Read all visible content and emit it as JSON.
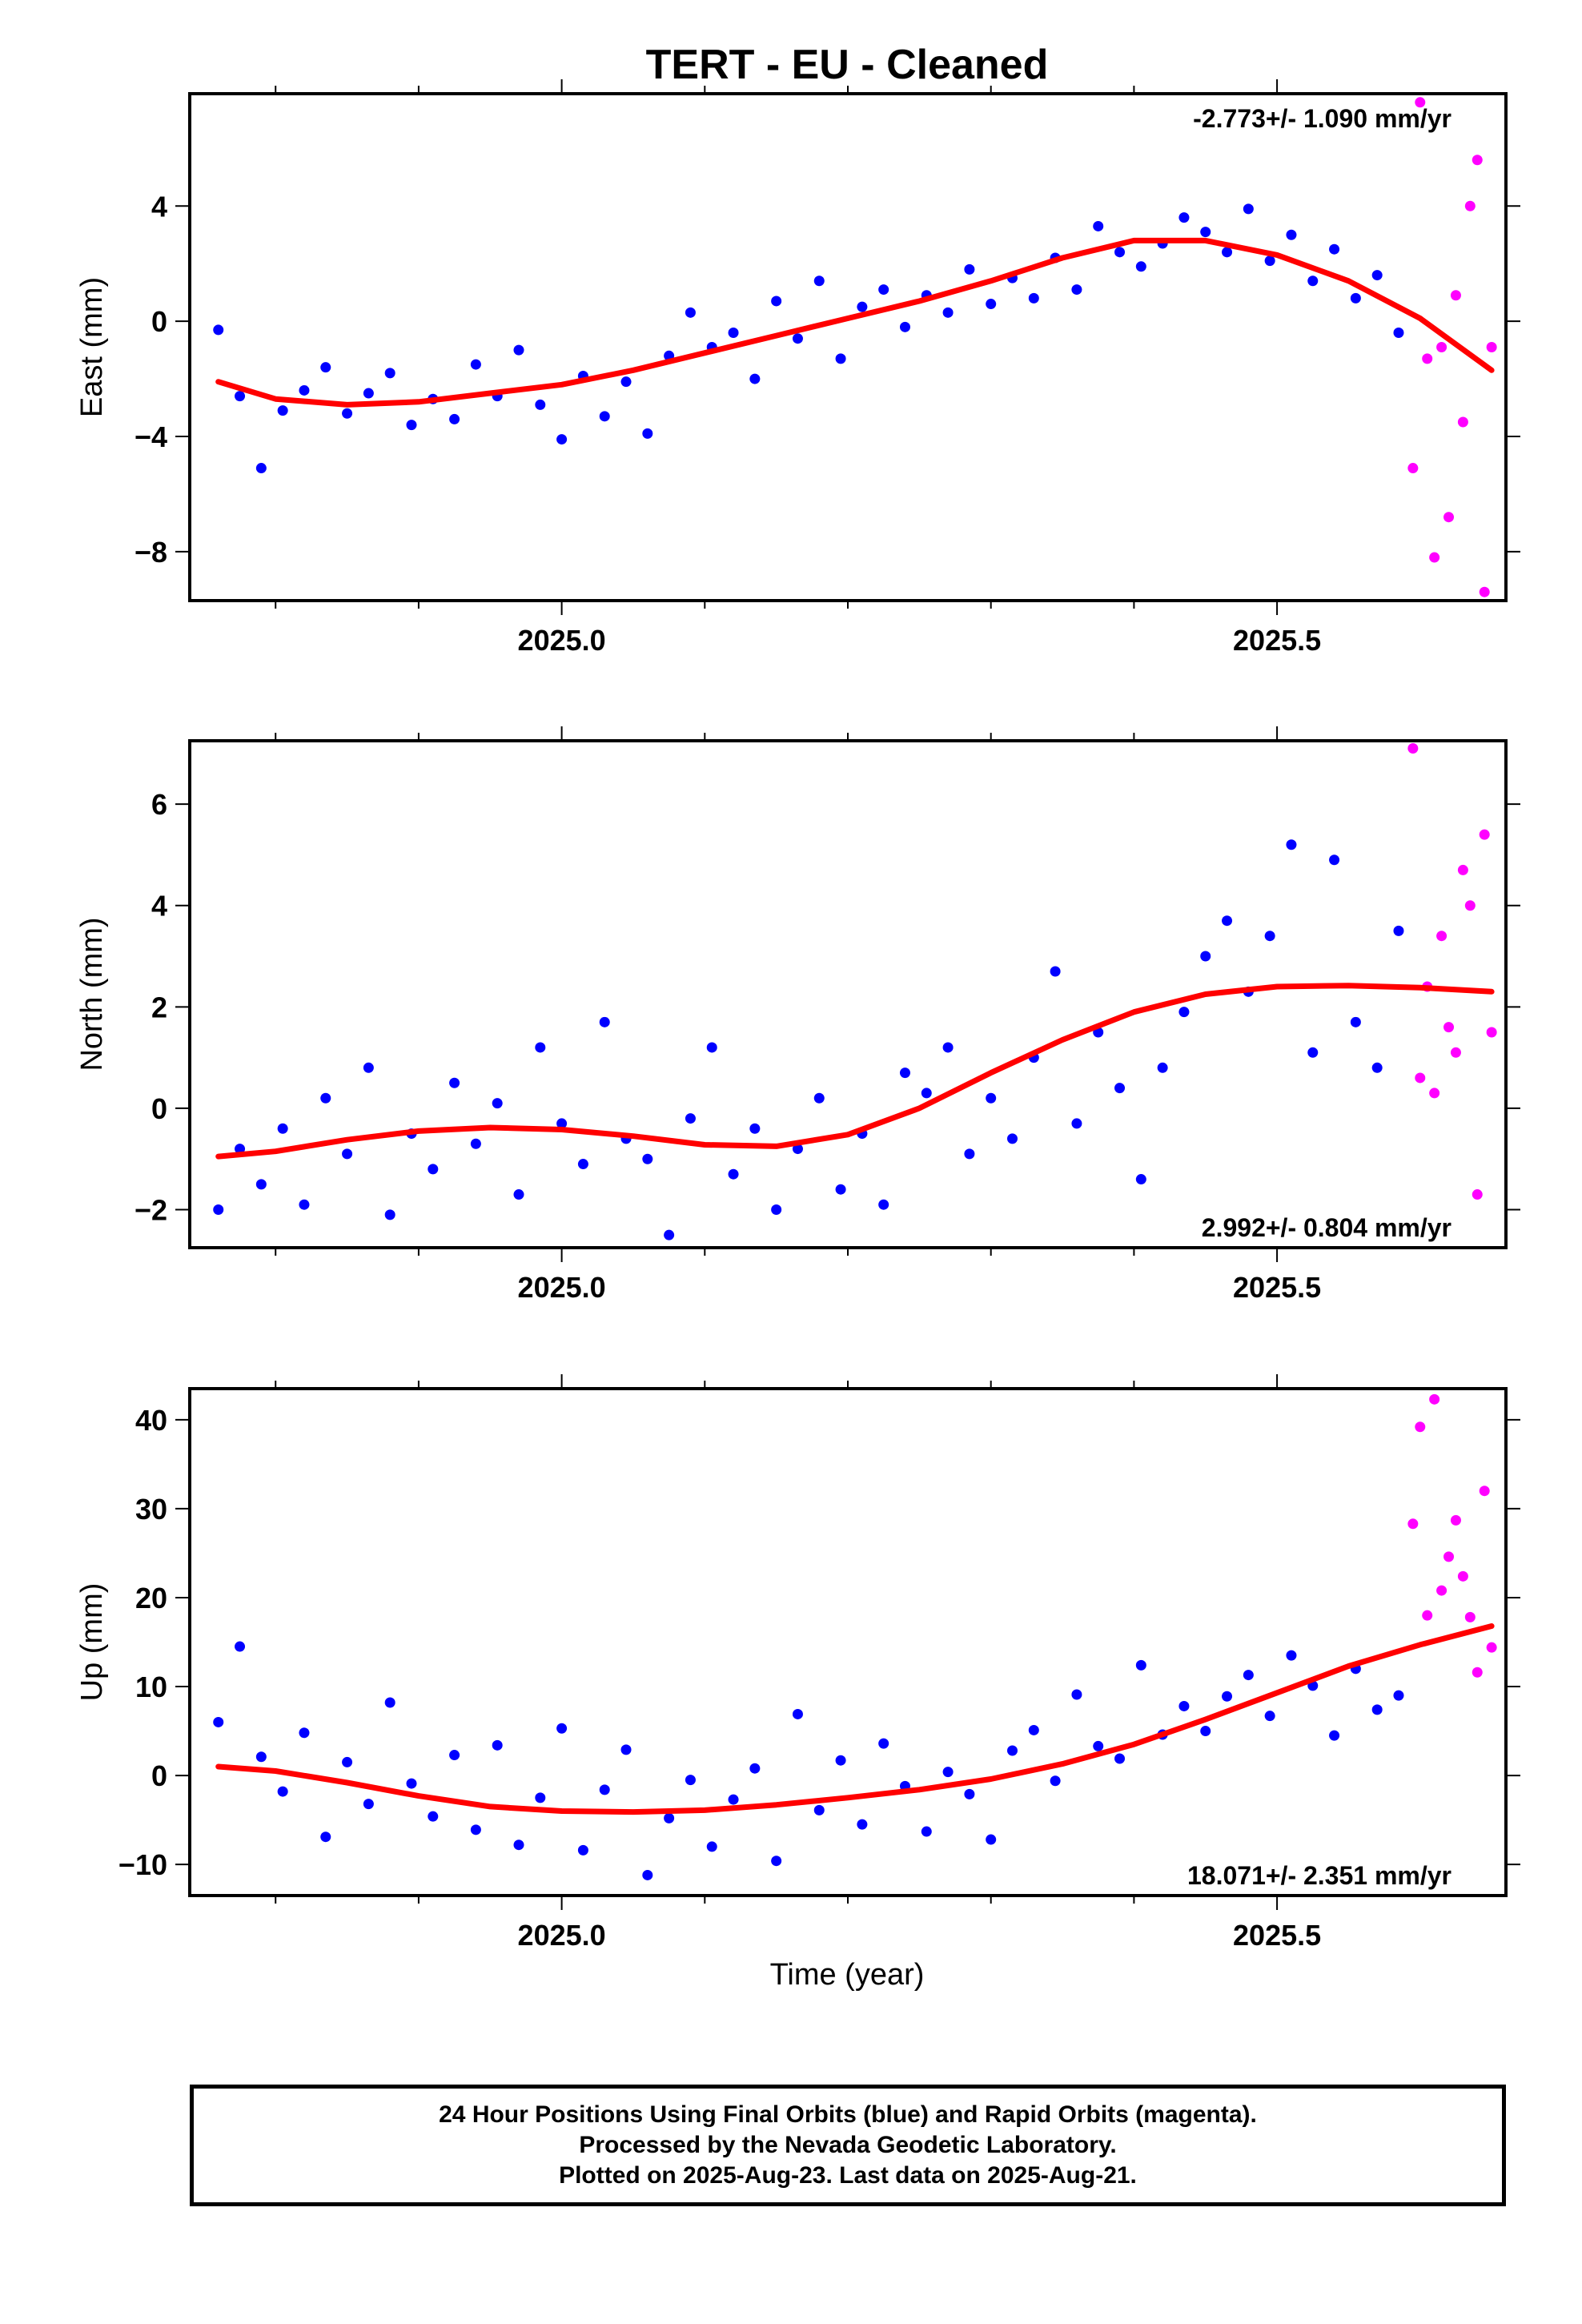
{
  "figure": {
    "title": "TERT  - EU - Cleaned",
    "xlabel": "Time (year)",
    "footer_lines": [
      "24 Hour Positions Using Final Orbits (blue) and Rapid Orbits (magenta).",
      "Processed by the Nevada Geodetic Laboratory.",
      "Plotted on 2025-Aug-23. Last data on 2025-Aug-21."
    ]
  },
  "colors": {
    "final": "#0000ff",
    "rapid": "#ff00ff",
    "fit": "#ff0000",
    "axes": "#000000"
  },
  "chart_data": [
    {
      "type": "scatter",
      "ylabel": "East (mm)",
      "rate_label": "-2.773+/- 1.090 mm/yr",
      "rate_position": "top-right",
      "xlim": [
        2024.74,
        2025.66
      ],
      "ylim": [
        -9.7,
        7.9
      ],
      "yticks": [
        -8,
        -4,
        0,
        4
      ],
      "ytick_labels": [
        "−8",
        "−4",
        "0",
        "4"
      ],
      "xticks": [
        2025.0,
        2025.5
      ],
      "xtick_labels": [
        "2025.0",
        "2025.5"
      ],
      "final": {
        "x": [
          2024.76,
          2024.775,
          2024.79,
          2024.805,
          2024.82,
          2024.835,
          2024.85,
          2024.865,
          2024.88,
          2024.895,
          2024.91,
          2024.925,
          2024.94,
          2024.955,
          2024.97,
          2024.985,
          2025.0,
          2025.015,
          2025.03,
          2025.045,
          2025.06,
          2025.075,
          2025.09,
          2025.105,
          2025.12,
          2025.135,
          2025.15,
          2025.165,
          2025.18,
          2025.195,
          2025.21,
          2025.225,
          2025.24,
          2025.255,
          2025.27,
          2025.285,
          2025.3,
          2025.315,
          2025.33,
          2025.345,
          2025.36,
          2025.375,
          2025.39,
          2025.405,
          2025.42,
          2025.435,
          2025.45,
          2025.465,
          2025.48,
          2025.495,
          2025.51,
          2025.525,
          2025.54,
          2025.555,
          2025.57,
          2025.585
        ],
        "y": [
          -0.3,
          -2.6,
          -5.1,
          -3.1,
          -2.4,
          -1.6,
          -3.2,
          -2.5,
          -1.8,
          -3.6,
          -2.7,
          -3.4,
          -1.5,
          -2.6,
          -1.0,
          -2.9,
          -4.1,
          -1.9,
          -3.3,
          -2.1,
          -3.9,
          -1.2,
          0.3,
          -0.9,
          -0.4,
          -2.0,
          0.7,
          -0.6,
          1.4,
          -1.3,
          0.5,
          1.1,
          -0.2,
          0.9,
          0.3,
          1.8,
          0.6,
          1.5,
          0.8,
          2.2,
          1.1,
          3.3,
          2.4,
          1.9,
          2.7,
          3.6,
          3.1,
          2.4,
          3.9,
          2.1,
          3.0,
          1.4,
          2.5,
          0.8,
          1.6,
          -0.4
        ]
      },
      "rapid": {
        "x": [
          2025.595,
          2025.6,
          2025.605,
          2025.61,
          2025.615,
          2025.62,
          2025.625,
          2025.63,
          2025.635,
          2025.64,
          2025.645,
          2025.65
        ],
        "y": [
          -5.1,
          7.6,
          -1.3,
          -8.2,
          -0.9,
          -6.8,
          0.9,
          -3.5,
          4.0,
          5.6,
          -9.4,
          -0.9
        ]
      },
      "fit": {
        "x": [
          2024.76,
          2024.8,
          2024.85,
          2024.9,
          2024.95,
          2025.0,
          2025.05,
          2025.1,
          2025.15,
          2025.2,
          2025.25,
          2025.3,
          2025.35,
          2025.4,
          2025.45,
          2025.5,
          2025.55,
          2025.6,
          2025.65
        ],
        "y": [
          -2.1,
          -2.7,
          -2.9,
          -2.8,
          -2.5,
          -2.2,
          -1.7,
          -1.1,
          -0.5,
          0.1,
          0.7,
          1.4,
          2.2,
          2.8,
          2.8,
          2.3,
          1.4,
          0.1,
          -1.7
        ]
      }
    },
    {
      "type": "scatter",
      "ylabel": "North (mm)",
      "rate_label": "2.992+/- 0.804 mm/yr",
      "rate_position": "bottom-right",
      "xlim": [
        2024.74,
        2025.66
      ],
      "ylim": [
        -2.75,
        7.25
      ],
      "yticks": [
        -2,
        0,
        2,
        4,
        6
      ],
      "ytick_labels": [
        "−2",
        "0",
        "2",
        "4",
        "6"
      ],
      "xticks": [
        2025.0,
        2025.5
      ],
      "xtick_labels": [
        "2025.0",
        "2025.5"
      ],
      "final": {
        "x": [
          2024.76,
          2024.775,
          2024.79,
          2024.805,
          2024.82,
          2024.835,
          2024.85,
          2024.865,
          2024.88,
          2024.895,
          2024.91,
          2024.925,
          2024.94,
          2024.955,
          2024.97,
          2024.985,
          2025.0,
          2025.015,
          2025.03,
          2025.045,
          2025.06,
          2025.075,
          2025.09,
          2025.105,
          2025.12,
          2025.135,
          2025.15,
          2025.165,
          2025.18,
          2025.195,
          2025.21,
          2025.225,
          2025.24,
          2025.255,
          2025.27,
          2025.285,
          2025.3,
          2025.315,
          2025.33,
          2025.345,
          2025.36,
          2025.375,
          2025.39,
          2025.405,
          2025.42,
          2025.435,
          2025.45,
          2025.465,
          2025.48,
          2025.495,
          2025.51,
          2025.525,
          2025.54,
          2025.555,
          2025.57,
          2025.585
        ],
        "y": [
          -2.0,
          -0.8,
          -1.5,
          -0.4,
          -1.9,
          0.2,
          -0.9,
          0.8,
          -2.1,
          -0.5,
          -1.2,
          0.5,
          -0.7,
          0.1,
          -1.7,
          1.2,
          -0.3,
          -1.1,
          1.7,
          -0.6,
          -1.0,
          -2.5,
          -0.2,
          1.2,
          -1.3,
          -0.4,
          -2.0,
          -0.8,
          0.2,
          -1.6,
          -0.5,
          -1.9,
          0.7,
          0.3,
          1.2,
          -0.9,
          0.2,
          -0.6,
          1.0,
          2.7,
          -0.3,
          1.5,
          0.4,
          -1.4,
          0.8,
          1.9,
          3.0,
          3.7,
          2.3,
          3.4,
          5.2,
          1.1,
          4.9,
          1.7,
          0.8,
          3.5
        ]
      },
      "rapid": {
        "x": [
          2025.595,
          2025.6,
          2025.605,
          2025.61,
          2025.615,
          2025.62,
          2025.625,
          2025.63,
          2025.635,
          2025.64,
          2025.645,
          2025.65
        ],
        "y": [
          7.1,
          0.6,
          2.4,
          0.3,
          3.4,
          1.6,
          1.1,
          4.7,
          4.0,
          -1.7,
          5.4,
          1.5
        ]
      },
      "fit": {
        "x": [
          2024.76,
          2024.8,
          2024.85,
          2024.9,
          2024.95,
          2025.0,
          2025.05,
          2025.1,
          2025.15,
          2025.2,
          2025.25,
          2025.3,
          2025.35,
          2025.4,
          2025.45,
          2025.5,
          2025.55,
          2025.6,
          2025.65
        ],
        "y": [
          -0.95,
          -0.85,
          -0.62,
          -0.45,
          -0.38,
          -0.42,
          -0.55,
          -0.72,
          -0.75,
          -0.52,
          0.0,
          0.7,
          1.35,
          1.9,
          2.25,
          2.4,
          2.42,
          2.38,
          2.3
        ]
      }
    },
    {
      "type": "scatter",
      "ylabel": "Up (mm)",
      "rate_label": "18.071+/- 2.351 mm/yr",
      "rate_position": "bottom-right",
      "xlim": [
        2024.74,
        2025.66
      ],
      "ylim": [
        -13.5,
        43.5
      ],
      "yticks": [
        -10,
        0,
        10,
        20,
        30,
        40
      ],
      "ytick_labels": [
        "−10",
        "0",
        "10",
        "20",
        "30",
        "40"
      ],
      "xticks": [
        2025.0,
        2025.5
      ],
      "xtick_labels": [
        "2025.0",
        "2025.5"
      ],
      "final": {
        "x": [
          2024.76,
          2024.775,
          2024.79,
          2024.805,
          2024.82,
          2024.835,
          2024.85,
          2024.865,
          2024.88,
          2024.895,
          2024.91,
          2024.925,
          2024.94,
          2024.955,
          2024.97,
          2024.985,
          2025.0,
          2025.015,
          2025.03,
          2025.045,
          2025.06,
          2025.075,
          2025.09,
          2025.105,
          2025.12,
          2025.135,
          2025.15,
          2025.165,
          2025.18,
          2025.195,
          2025.21,
          2025.225,
          2025.24,
          2025.255,
          2025.27,
          2025.285,
          2025.3,
          2025.315,
          2025.33,
          2025.345,
          2025.36,
          2025.375,
          2025.39,
          2025.405,
          2025.42,
          2025.435,
          2025.45,
          2025.465,
          2025.48,
          2025.495,
          2025.51,
          2025.525,
          2025.54,
          2025.555,
          2025.57,
          2025.585
        ],
        "y": [
          6.0,
          14.5,
          2.1,
          -1.8,
          4.8,
          -6.9,
          1.5,
          -3.2,
          8.2,
          -0.9,
          -4.6,
          2.3,
          -6.1,
          3.4,
          -7.8,
          -2.5,
          5.3,
          -8.4,
          -1.6,
          2.9,
          -11.2,
          -4.8,
          -0.5,
          -8.0,
          -2.7,
          0.8,
          -9.6,
          6.9,
          -3.9,
          1.7,
          -5.5,
          3.6,
          -1.2,
          -6.3,
          0.4,
          -2.1,
          -7.2,
          2.8,
          5.1,
          -0.6,
          9.1,
          3.3,
          1.9,
          12.4,
          4.6,
          7.8,
          5.0,
          8.9,
          11.3,
          6.7,
          13.5,
          10.1,
          4.5,
          12.0,
          7.4,
          9.0
        ]
      },
      "rapid": {
        "x": [
          2025.595,
          2025.6,
          2025.605,
          2025.61,
          2025.615,
          2025.62,
          2025.625,
          2025.63,
          2025.635,
          2025.64,
          2025.645,
          2025.65
        ],
        "y": [
          28.3,
          39.2,
          18.0,
          42.3,
          20.8,
          24.6,
          28.7,
          22.4,
          17.8,
          11.6,
          32.0,
          14.4
        ]
      },
      "fit": {
        "x": [
          2024.76,
          2024.8,
          2024.85,
          2024.9,
          2024.95,
          2025.0,
          2025.05,
          2025.1,
          2025.15,
          2025.2,
          2025.25,
          2025.3,
          2025.35,
          2025.4,
          2025.45,
          2025.5,
          2025.55,
          2025.6,
          2025.65
        ],
        "y": [
          1.0,
          0.5,
          -0.8,
          -2.3,
          -3.5,
          -4.0,
          -4.1,
          -3.9,
          -3.3,
          -2.5,
          -1.6,
          -0.4,
          1.3,
          3.5,
          6.3,
          9.3,
          12.3,
          14.7,
          16.8
        ]
      }
    }
  ]
}
